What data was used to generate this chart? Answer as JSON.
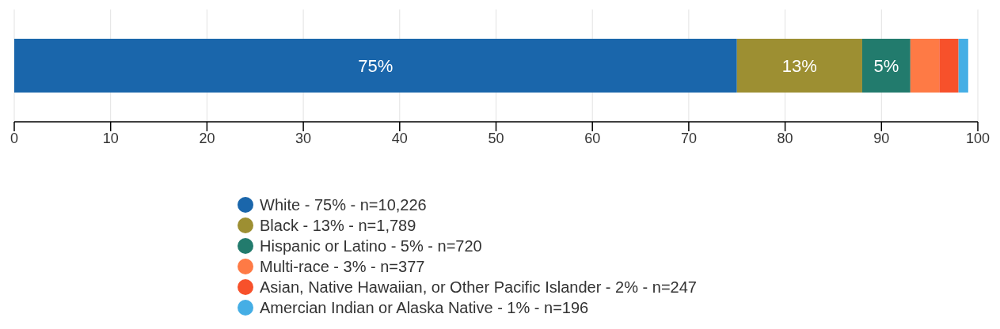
{
  "chart_data": {
    "type": "bar",
    "orientation": "horizontal",
    "stacked": true,
    "categories": [
      null
    ],
    "series": [
      {
        "name": "White - 75% - n=10,226",
        "color": "#1a66ab",
        "values": [
          75
        ],
        "value_labels": [
          "75%"
        ]
      },
      {
        "name": "Black - 13% - n=1,789",
        "color": "#9d8f32",
        "values": [
          13
        ],
        "value_labels": [
          "13%"
        ]
      },
      {
        "name": "Hispanic or Latino - 5% - n=720",
        "color": "#227b6d",
        "values": [
          5
        ],
        "value_labels": [
          "5%"
        ]
      },
      {
        "name": "Multi-race - 3% - n=377",
        "color": "#fe7a45",
        "values": [
          3
        ],
        "value_labels": [
          null
        ]
      },
      {
        "name": "Asian, Native Hawaiian, or Other Pacific Islander - 2% - n=247",
        "color": "#f7512b",
        "values": [
          2
        ],
        "value_labels": [
          null
        ]
      },
      {
        "name": "Amercian Indian or Alaska Native - 1% - n=196",
        "color": "#45aee5",
        "values": [
          1
        ],
        "value_labels": [
          null
        ]
      }
    ],
    "xlim": [
      0,
      100
    ],
    "xticks": [
      0,
      10,
      20,
      30,
      40,
      50,
      60,
      70,
      80,
      90,
      100
    ],
    "grid": "x",
    "legend": "bottom"
  }
}
